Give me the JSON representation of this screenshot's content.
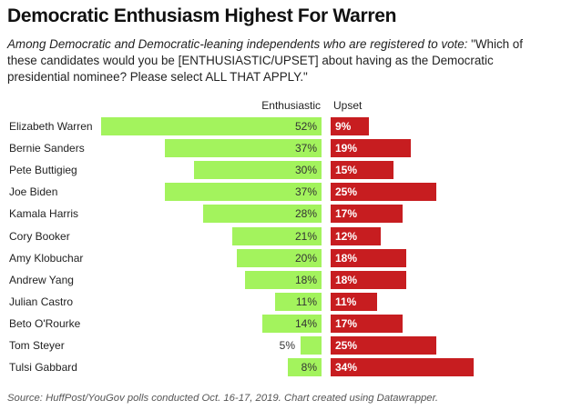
{
  "title": "Democratic Enthusiasm Highest For Warren",
  "subtitle_italic": "Among Democratic and Democratic-leaning independents who are registered to vote:",
  "subtitle_rest": " \"Which of these candidates would you be [ENTHUSIASTIC/UPSET] about having as the Democratic presidential nominee? Please select ALL THAT APPLY.\"",
  "source": "Source: HuffPost/YouGov polls conducted Oct. 16-17, 2019. Chart created using Datawrapper.",
  "colors": {
    "enthusiastic": "#a3f35d",
    "upset": "#c71d20"
  },
  "chart_data": {
    "type": "bar",
    "title": "Democratic Enthusiasm Highest For Warren",
    "xlabel": "",
    "ylabel": "",
    "unit": "%",
    "categories": [
      "Elizabeth Warren",
      "Bernie Sanders",
      "Pete Buttigieg",
      "Joe Biden",
      "Kamala Harris",
      "Cory Booker",
      "Amy Klobuchar",
      "Andrew Yang",
      "Julian Castro",
      "Beto O'Rourke",
      "Tom Steyer",
      "Tulsi Gabbard"
    ],
    "series": [
      {
        "name": "Enthusiastic",
        "values": [
          52,
          37,
          30,
          37,
          28,
          21,
          20,
          18,
          11,
          14,
          5,
          8
        ]
      },
      {
        "name": "Upset",
        "values": [
          9,
          19,
          15,
          25,
          17,
          12,
          18,
          18,
          11,
          17,
          25,
          34
        ]
      }
    ],
    "labels": {
      "Enthusiastic": [
        "52%",
        "37%",
        "30%",
        "37%",
        "28%",
        "21%",
        "20%",
        "18%",
        "11%",
        "14%",
        "5%",
        "8%"
      ],
      "Upset": [
        "9%",
        "19%",
        "15%",
        "25%",
        "17%",
        "12%",
        "18%",
        "18%",
        "11%",
        "17%",
        "25%",
        "34%"
      ]
    }
  }
}
